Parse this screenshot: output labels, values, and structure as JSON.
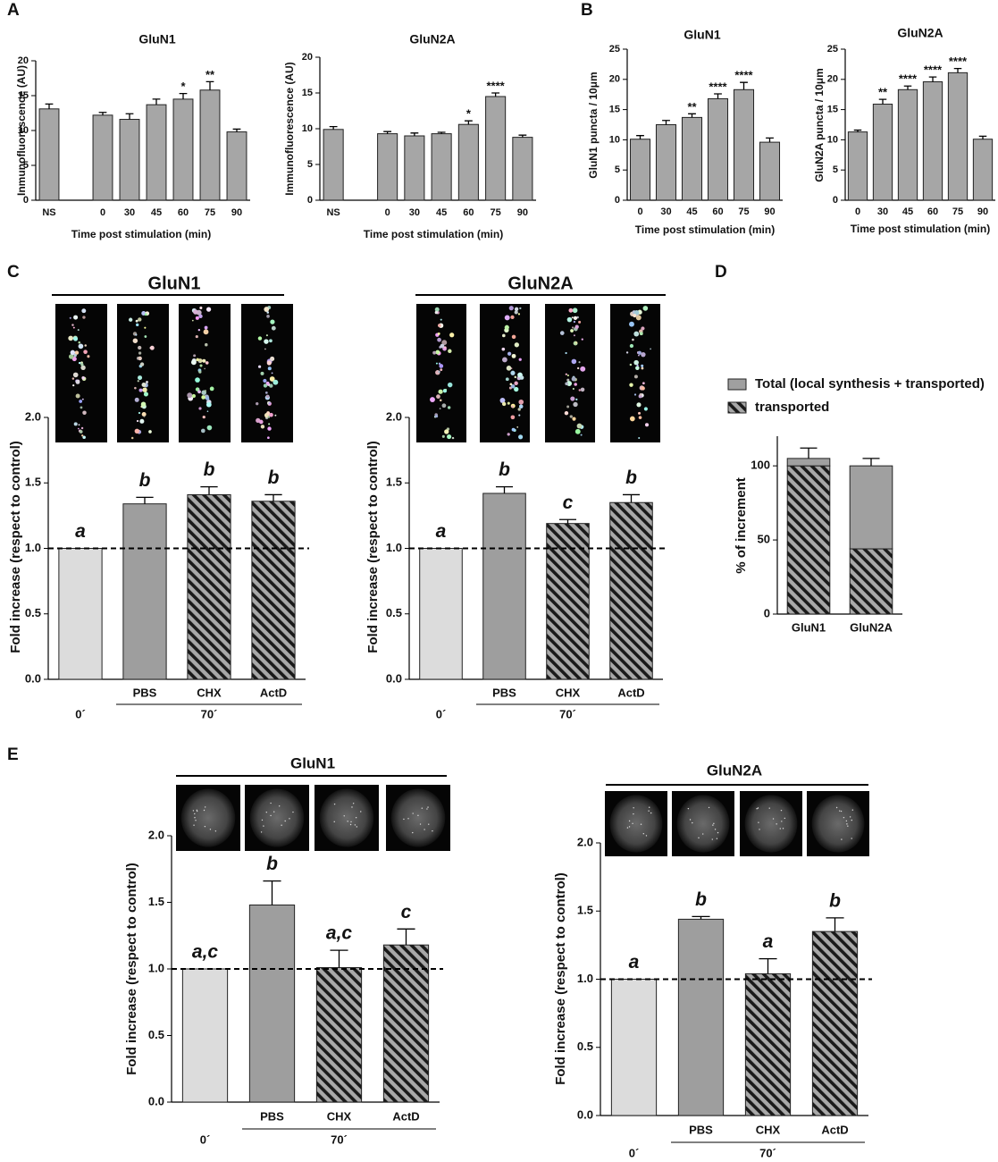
{
  "chart_data": [
    {
      "type": "bar",
      "panel": "A",
      "title": "GluN1",
      "ylabel": "Inmunofluorescence (AU)",
      "xlabel": "Time post stimulation (min)",
      "categories": [
        "NS",
        null,
        "0",
        "30",
        "45",
        "60",
        "75",
        "90"
      ],
      "values": [
        13.1,
        null,
        12.2,
        11.6,
        13.7,
        14.5,
        15.8,
        9.8
      ],
      "errors": [
        0.7,
        null,
        0.4,
        0.8,
        0.8,
        0.8,
        1.2,
        0.4
      ],
      "annotations": [
        null,
        null,
        null,
        null,
        null,
        "*",
        "**",
        null
      ],
      "color": "#a6a6a6",
      "ylim": [
        0,
        20
      ],
      "yticks": [
        0,
        5,
        10,
        15,
        20
      ]
    },
    {
      "type": "bar",
      "title": "GluN2A",
      "ylabel": "Immunofluorescence (AU)",
      "xlabel": "Time post stimulation (min)",
      "categories": [
        "NS",
        null,
        "0",
        "30",
        "45",
        "60",
        "75",
        "90"
      ],
      "values": [
        9.9,
        null,
        9.3,
        9.0,
        9.3,
        10.6,
        14.5,
        8.8
      ],
      "errors": [
        0.4,
        null,
        0.3,
        0.4,
        0.2,
        0.5,
        0.5,
        0.3
      ],
      "annotations": [
        null,
        null,
        null,
        null,
        null,
        "*",
        "****",
        null
      ],
      "color": "#a6a6a6",
      "ylim": [
        0,
        20
      ],
      "yticks": [
        0,
        5,
        10,
        15,
        20
      ]
    },
    {
      "type": "bar",
      "panel": "B",
      "title": "GluN1",
      "ylabel": "GluN1 puncta / 10μm",
      "xlabel": "Time post stimulation (min)",
      "categories": [
        "0",
        "30",
        "45",
        "60",
        "75",
        "90"
      ],
      "values": [
        10.1,
        12.5,
        13.7,
        16.8,
        18.3,
        9.6
      ],
      "errors": [
        0.6,
        0.7,
        0.6,
        0.8,
        1.2,
        0.7
      ],
      "annotations": [
        null,
        null,
        "**",
        "****",
        "****",
        null
      ],
      "color": "#a6a6a6",
      "ylim": [
        0,
        25
      ],
      "yticks": [
        0,
        5,
        10,
        15,
        20,
        25
      ]
    },
    {
      "type": "bar",
      "title": "GluN2A",
      "ylabel": "GluN2A puncta / 10μm",
      "xlabel": "Time post stimulation (min)",
      "categories": [
        "0",
        "30",
        "45",
        "60",
        "75",
        "90"
      ],
      "values": [
        11.3,
        15.9,
        18.3,
        19.6,
        21.1,
        10.1
      ],
      "errors": [
        0.3,
        0.8,
        0.6,
        0.8,
        0.7,
        0.5
      ],
      "annotations": [
        null,
        "**",
        "****",
        "****",
        "****",
        null
      ],
      "color": "#a6a6a6",
      "ylim": [
        0,
        25
      ],
      "yticks": [
        0,
        5,
        10,
        15,
        20,
        25
      ]
    },
    {
      "type": "bar",
      "panel": "C",
      "title": "GluN1",
      "ylabel": "Fold increase  (respect to control)",
      "categories": [
        "0´",
        "PBS",
        "CHX",
        "ActD"
      ],
      "group_label": "70´",
      "values": [
        1.0,
        1.34,
        1.41,
        1.36
      ],
      "errors": [
        null,
        0.05,
        0.06,
        0.05
      ],
      "letters": [
        "a",
        "b",
        "b",
        "b"
      ],
      "fills": [
        "#dcdcdc",
        "#9e9e9e",
        "hatch",
        "hatch"
      ],
      "refline": 1.0,
      "ylim": [
        0,
        2.0
      ],
      "yticks": [
        {
          "value": 0,
          "label": "0.0"
        },
        0.5,
        {
          "value": 1,
          "label": "1.0"
        },
        1.5,
        {
          "value": 2,
          "label": "2.0"
        }
      ]
    },
    {
      "type": "bar",
      "title": "GluN2A",
      "ylabel": "Fold increase  (respect to control)",
      "categories": [
        "0´",
        "PBS",
        "CHX",
        "ActD"
      ],
      "group_label": "70´",
      "values": [
        1.0,
        1.42,
        1.19,
        1.35
      ],
      "errors": [
        null,
        0.05,
        0.03,
        0.06
      ],
      "letters": [
        "a",
        "b",
        "c",
        "b"
      ],
      "fills": [
        "#dcdcdc",
        "#9e9e9e",
        "hatch",
        "hatch"
      ],
      "refline": 1.0,
      "ylim": [
        0,
        2.0
      ],
      "yticks": [
        {
          "value": 0,
          "label": "0.0"
        },
        0.5,
        {
          "value": 1,
          "label": "1.0"
        },
        1.5,
        {
          "value": 2,
          "label": "2.0"
        }
      ]
    },
    {
      "type": "stacked_bar",
      "panel": "D",
      "ylabel": "% of increment",
      "categories": [
        "GluN1",
        "GluN2A"
      ],
      "series": [
        {
          "name": "transported",
          "color": "hatch",
          "values": [
            100,
            44
          ],
          "errors": [
            null,
            5
          ]
        },
        {
          "name": "Total (local synthesis + transported)",
          "color": "#a0a0a0",
          "values": [
            5,
            56
          ],
          "errors": [
            7,
            5
          ]
        }
      ],
      "ylim": [
        0,
        120
      ],
      "yticks": [
        0,
        50,
        100
      ]
    },
    {
      "type": "bar",
      "panel": "E",
      "title": "GluN1",
      "ylabel": "Fold increase  (respect to control)",
      "categories": [
        "0´",
        "PBS",
        "CHX",
        "ActD"
      ],
      "group_label": "70´",
      "values": [
        1.0,
        1.48,
        1.01,
        1.18
      ],
      "errors": [
        null,
        0.18,
        0.13,
        0.12
      ],
      "letters": [
        "a,c",
        "b",
        "a,c",
        "c"
      ],
      "fills": [
        "#dcdcdc",
        "#9e9e9e",
        "hatch",
        "hatch"
      ],
      "refline": 1.0,
      "ylim": [
        0,
        2.0
      ],
      "yticks": [
        {
          "value": 0,
          "label": "0.0"
        },
        0.5,
        {
          "value": 1,
          "label": "1.0"
        },
        1.5,
        {
          "value": 2,
          "label": "2.0"
        }
      ]
    },
    {
      "type": "bar",
      "title": "GluN2A",
      "ylabel": "Fold increase  (respect to control)",
      "categories": [
        "0´",
        "PBS",
        "CHX",
        "ActD"
      ],
      "group_label": "70´",
      "values": [
        1.0,
        1.44,
        1.04,
        1.35
      ],
      "errors": [
        null,
        0.02,
        0.11,
        0.1
      ],
      "letters": [
        "a",
        "b",
        "a",
        "b"
      ],
      "fills": [
        "#dcdcdc",
        "#9e9e9e",
        "hatch",
        "hatch"
      ],
      "refline": 1.0,
      "ylim": [
        0,
        2.0
      ],
      "yticks": [
        {
          "value": 0,
          "label": "0.0"
        },
        0.5,
        {
          "value": 1,
          "label": "1.0"
        },
        1.5,
        {
          "value": 2,
          "label": "2.0"
        }
      ]
    }
  ]
}
